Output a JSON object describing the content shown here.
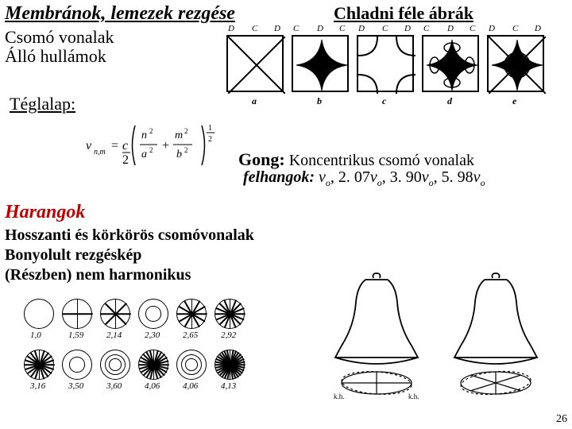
{
  "title_main": "Membránok, lemezek rezgése",
  "title_right": "Chladni féle ábrák",
  "subtitle1": "Csomó vonalak",
  "subtitle2": "Álló hullámok",
  "teglalap": "Téglalap:",
  "gong_label": "Gong:",
  "gong_text": " Koncentrikus csomó vonalak",
  "felhangok_label": "felhangok:",
  "overtones": [
    {
      "coef": "",
      "nu": "ν",
      "sub": "o"
    },
    {
      "coef": "2. 07",
      "nu": "ν",
      "sub": "o"
    },
    {
      "coef": "3. 90",
      "nu": "ν",
      "sub": "o"
    },
    {
      "coef": "5. 98",
      "nu": "ν",
      "sub": "o"
    }
  ],
  "harangok": "Harangok",
  "line2": "Hosszanti és körkörös csomóvonalak",
  "line3": "Bonyolult rezgéskép",
  "line4": "(Részben) nem harmonikus",
  "pagenum": "26",
  "formula": {
    "lhs": "ν",
    "lhs_sub": "n,m",
    "n": "n",
    "m": "m",
    "a": "a",
    "b": "b",
    "exp": "1/2"
  },
  "chladni": {
    "top_labels": [
      [
        "D",
        "C",
        "D"
      ],
      [
        "C",
        "D",
        "C"
      ],
      [
        "D",
        "C",
        "D"
      ],
      [
        "C",
        "D",
        "C"
      ],
      [
        "D",
        "C",
        "D"
      ]
    ],
    "bottom_labels": [
      "a",
      "b",
      "c",
      "d",
      "e"
    ]
  },
  "circle_labels_row1": [
    "1,0",
    "1,59",
    "2,14",
    "2,30",
    "2,65",
    "2,92"
  ],
  "circle_labels_row2": [
    "3,16",
    "3,50",
    "3,60",
    "4,06",
    "4,06",
    "4,13"
  ],
  "circle_row1_spokes": [
    0,
    2,
    4,
    0,
    6,
    8
  ],
  "circle_row1_inner": [
    0,
    0,
    0,
    1,
    0,
    0
  ],
  "circle_row2_spokes": [
    10,
    0,
    0,
    12,
    0,
    16
  ],
  "circle_row2_inner": [
    0,
    1,
    2,
    0,
    2,
    0
  ],
  "colors": {
    "accent": "#c00000",
    "ink": "#000000",
    "bg": "#ffffff"
  }
}
